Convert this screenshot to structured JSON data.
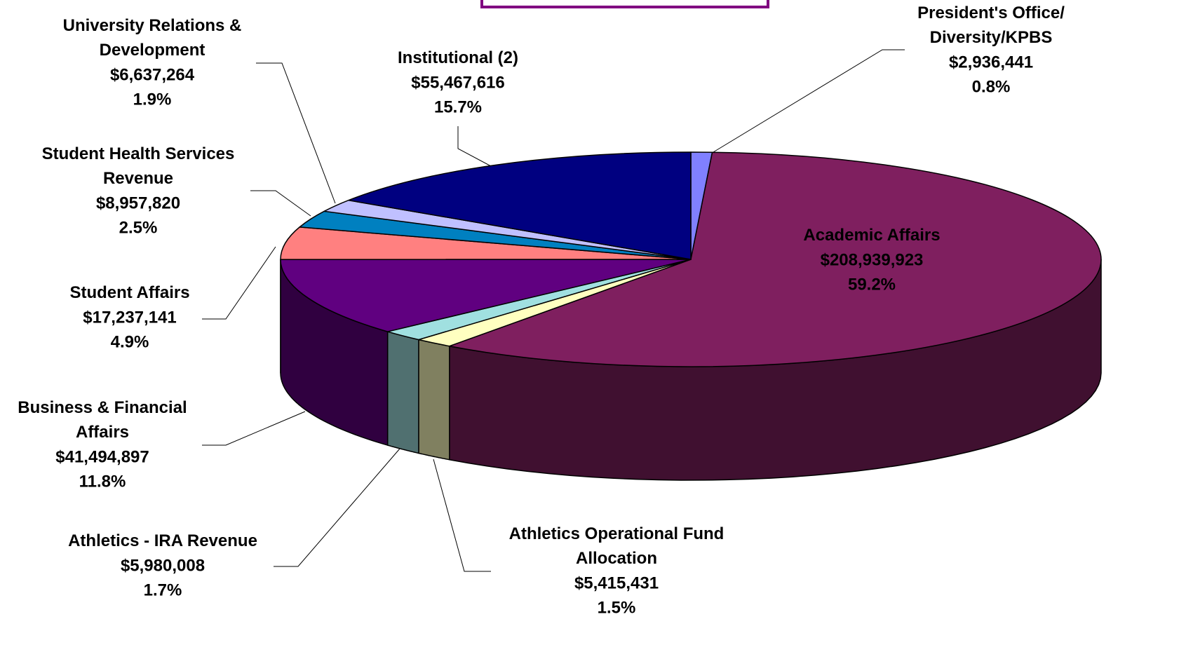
{
  "chart_data": {
    "type": "pie3d",
    "categories": [
      "President's Office/\nDiversity/KPBS",
      "Academic Affairs",
      "Athletics Operational Fund\nAllocation",
      "Athletics - IRA Revenue",
      "Business & Financial\nAffairs",
      "Student Affairs",
      "Student Health Services\nRevenue",
      "University Relations &\nDevelopment",
      "Institutional (2)"
    ],
    "values": [
      2936441,
      208939923,
      5415431,
      5980008,
      41494897,
      17237141,
      8957820,
      6637264,
      55467616
    ],
    "value_labels": [
      "$2,936,441",
      "$208,939,923",
      "$5,415,431",
      "$5,980,008",
      "$41,494,897",
      "$17,237,141",
      "$8,957,820",
      "$6,637,264",
      "$55,467,616"
    ],
    "percents": [
      0.8,
      59.2,
      1.5,
      1.7,
      11.8,
      4.9,
      2.5,
      1.9,
      15.7
    ],
    "percent_labels": [
      "0.8%",
      "59.2%",
      "1.5%",
      "1.7%",
      "11.8%",
      "4.9%",
      "2.5%",
      "1.9%",
      "15.7%"
    ],
    "colors": [
      "#8080ff",
      "#7f1f5f",
      "#ffffc0",
      "#a0e0e0",
      "#600080",
      "#ff8080",
      "#0080c0",
      "#c0c0ff",
      "#000080"
    ]
  }
}
